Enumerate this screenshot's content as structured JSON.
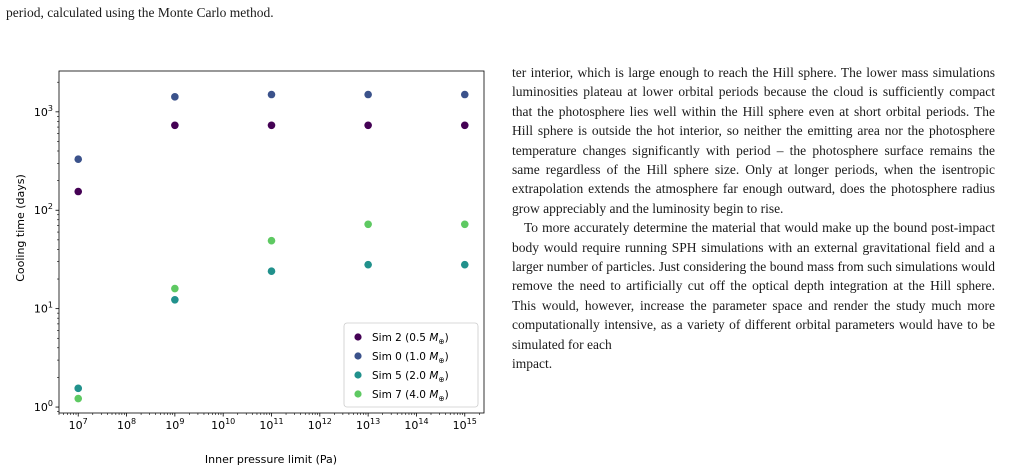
{
  "caption_tail": "period, calculated using the Monte Carlo method.",
  "chart_data": {
    "type": "scatter",
    "xlabel": "Inner pressure limit (Pa)",
    "ylabel": "Cooling time (days)",
    "x_scale": "log",
    "y_scale": "log",
    "xlim": [
      4000000.0,
      2500000000000000.0
    ],
    "ylim": [
      0.87,
      2600
    ],
    "x_ticks": [
      {
        "value": 10000000.0,
        "base": "10",
        "exp": "7"
      },
      {
        "value": 100000000.0,
        "base": "10",
        "exp": "8"
      },
      {
        "value": 1000000000.0,
        "base": "10",
        "exp": "9"
      },
      {
        "value": 10000000000.0,
        "base": "10",
        "exp": "10"
      },
      {
        "value": 100000000000.0,
        "base": "10",
        "exp": "11"
      },
      {
        "value": 1000000000000.0,
        "base": "10",
        "exp": "12"
      },
      {
        "value": 10000000000000.0,
        "base": "10",
        "exp": "13"
      },
      {
        "value": 100000000000000.0,
        "base": "10",
        "exp": "14"
      },
      {
        "value": 1000000000000000.0,
        "base": "10",
        "exp": "15"
      }
    ],
    "y_ticks": [
      {
        "value": 1,
        "base": "10",
        "exp": "0"
      },
      {
        "value": 10,
        "base": "10",
        "exp": "1"
      },
      {
        "value": 100,
        "base": "10",
        "exp": "2"
      },
      {
        "value": 1000,
        "base": "10",
        "exp": "3"
      }
    ],
    "legend_position": "lower-right",
    "series": [
      {
        "name": "Sim 2 (0.5 M⊕)",
        "label_prefix": "Sim 2 (0.5 ",
        "label_symbol": "M",
        "label_sub": "⊕",
        "label_suffix": ")",
        "color": "#440154",
        "x": [
          10000000.0,
          1000000000.0,
          100000000000.0,
          10000000000000.0,
          1000000000000000.0
        ],
        "y": [
          155,
          730,
          730,
          730,
          730
        ]
      },
      {
        "name": "Sim 0 (1.0 M⊕)",
        "label_prefix": "Sim 0 (1.0 ",
        "label_symbol": "M",
        "label_sub": "⊕",
        "label_suffix": ")",
        "color": "#3b528b",
        "x": [
          10000000.0,
          1000000000.0,
          100000000000.0,
          10000000000000.0,
          1000000000000000.0
        ],
        "y": [
          330,
          1420,
          1500,
          1500,
          1500
        ]
      },
      {
        "name": "Sim 5 (2.0 M⊕)",
        "label_prefix": "Sim 5 (2.0 ",
        "label_symbol": "M",
        "label_sub": "⊕",
        "label_suffix": ")",
        "color": "#21918c",
        "x": [
          10000000.0,
          1000000000.0,
          100000000000.0,
          10000000000000.0,
          1000000000000000.0
        ],
        "y": [
          1.55,
          12.3,
          24,
          28,
          28
        ]
      },
      {
        "name": "Sim 7 (4.0 M⊕)",
        "label_prefix": "Sim 7 (4.0 ",
        "label_symbol": "M",
        "label_sub": "⊕",
        "label_suffix": ")",
        "color": "#5ec962",
        "x": [
          10000000.0,
          1000000000.0,
          100000000000.0,
          10000000000000.0,
          1000000000000000.0
        ],
        "y": [
          1.22,
          16,
          49,
          72,
          72
        ]
      }
    ]
  },
  "body": {
    "p1": "ter interior, which is large enough to reach the Hill sphere. The lower mass simulations luminosities plateau at lower orbital periods because the cloud is sufficiently compact that the photosphere lies well within the Hill sphere even at short orbital periods. The Hill sphere is outside the hot interior, so neither the emitting area nor the photosphere temperature changes significantly with period – the photosphere surface remains the same regardless of the Hill sphere size. Only at longer periods, when the isentropic extrapolation extends the atmosphere far enough outward, does the photosphere radius grow appreciably and the luminosity begin to rise.",
    "p2": "To more accurately determine the material that would make up the bound post-impact body would require running SPH simulations with an external gravitational field and a larger number of particles. Just considering the bound mass from such simulations would remove the need to artificially cut off the optical depth integration at the Hill sphere. This would, however, increase the parameter space and render the study much more computationally intensive, as a variety of different orbital parameters would have to be simulated for each",
    "p2_last": "impact."
  }
}
